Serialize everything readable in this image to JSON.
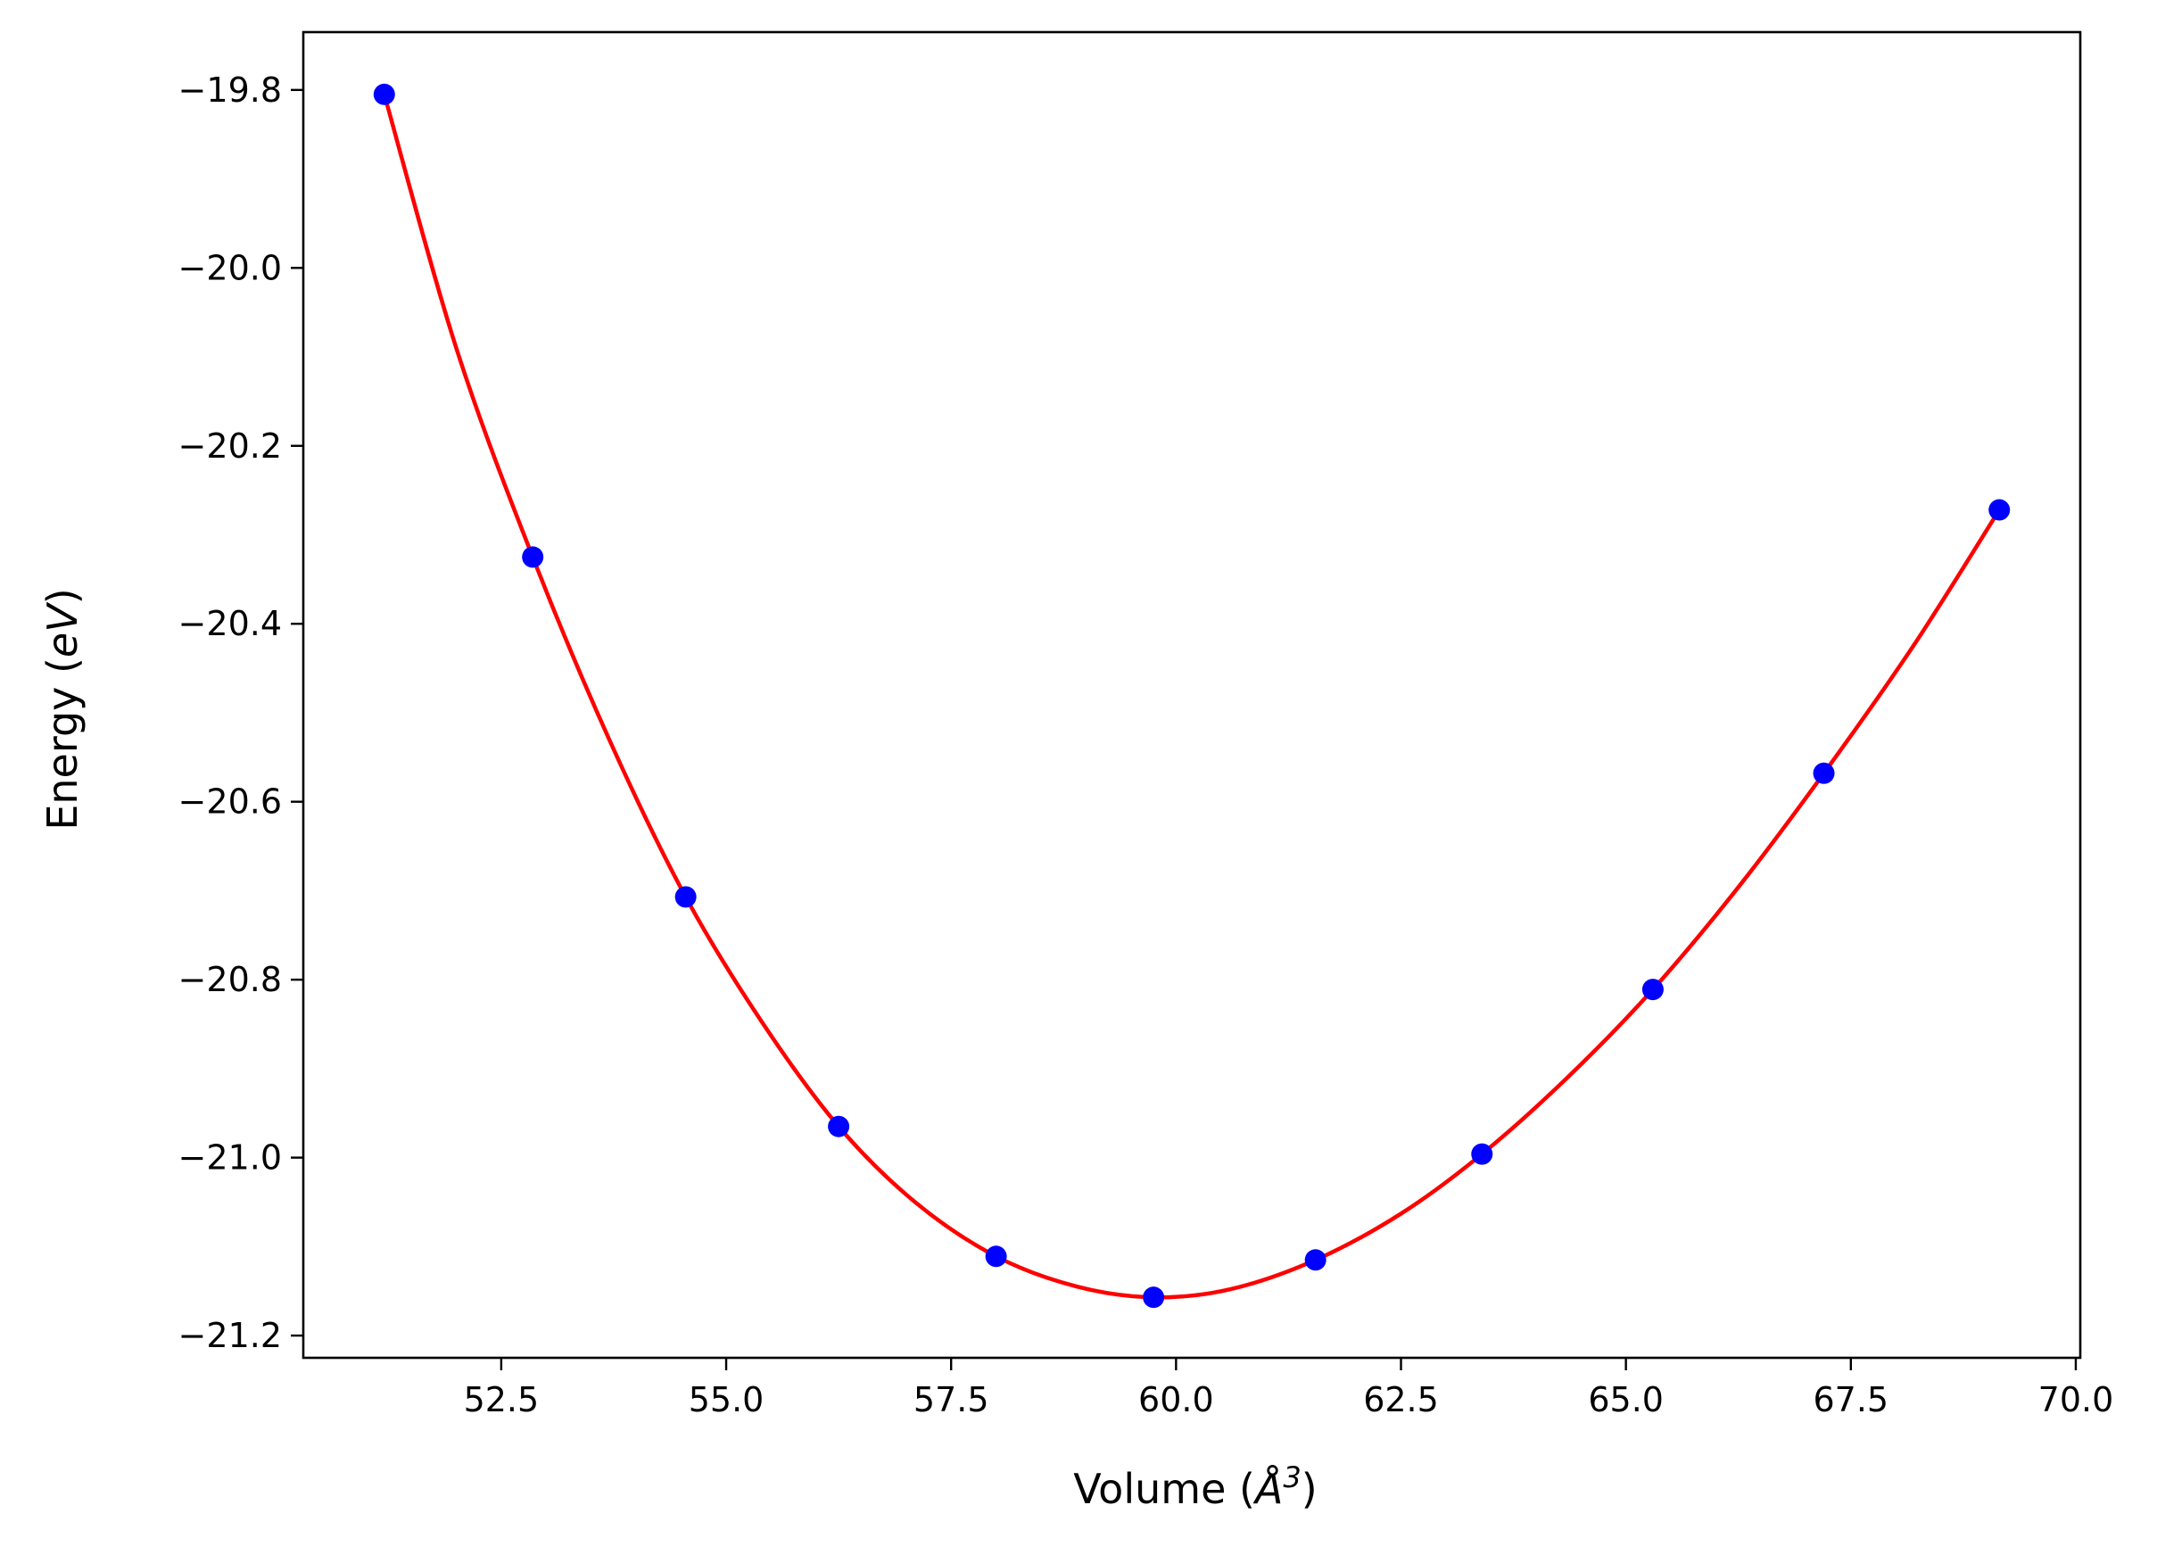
{
  "chart_data": {
    "type": "line",
    "xlabel": "Volume (",
    "xlabel_unit": "Å",
    "xlabel_exp": "3",
    "xlabel_close": ")",
    "ylabel": "Energy (",
    "ylabel_unit": "eV",
    "ylabel_close": ")",
    "xlim": [
      50.3,
      70.05
    ],
    "ylim": [
      -21.225,
      -19.735
    ],
    "x_ticks": [
      52.5,
      55.0,
      57.5,
      60.0,
      62.5,
      65.0,
      67.5,
      70.0
    ],
    "x_tick_labels": [
      "52.5",
      "55.0",
      "57.5",
      "60.0",
      "62.5",
      "65.0",
      "67.5",
      "70.0"
    ],
    "y_ticks": [
      -19.8,
      -20.0,
      -20.2,
      -20.4,
      -20.6,
      -20.8,
      -21.0,
      -21.2
    ],
    "y_tick_labels": [
      "−19.8",
      "−20.0",
      "−20.2",
      "−20.4",
      "−20.6",
      "−20.8",
      "−21.0",
      "−21.2"
    ],
    "grid": false,
    "series": [
      {
        "kind": "scatter",
        "color": "#0000ff",
        "x": [
          51.2,
          52.85,
          54.55,
          56.25,
          58.0,
          59.75,
          61.55,
          63.4,
          65.3,
          67.2,
          69.15
        ],
        "y": [
          -19.805,
          -20.325,
          -20.707,
          -20.965,
          -21.111,
          -21.157,
          -21.115,
          -20.996,
          -20.811,
          -20.568,
          -20.272
        ]
      },
      {
        "kind": "fit",
        "color": "#ff0000",
        "x": [
          51.2,
          52.0,
          52.85,
          53.7,
          54.55,
          55.4,
          56.25,
          57.1,
          58.0,
          58.9,
          59.75,
          60.6,
          61.55,
          62.5,
          63.4,
          64.35,
          65.3,
          66.25,
          67.2,
          68.2,
          69.15
        ],
        "y": [
          -19.805,
          -20.09,
          -20.325,
          -20.53,
          -20.707,
          -20.848,
          -20.965,
          -21.05,
          -21.111,
          -21.145,
          -21.157,
          -21.148,
          -21.115,
          -21.063,
          -20.996,
          -20.91,
          -20.811,
          -20.696,
          -20.568,
          -20.424,
          -20.272
        ]
      }
    ]
  }
}
